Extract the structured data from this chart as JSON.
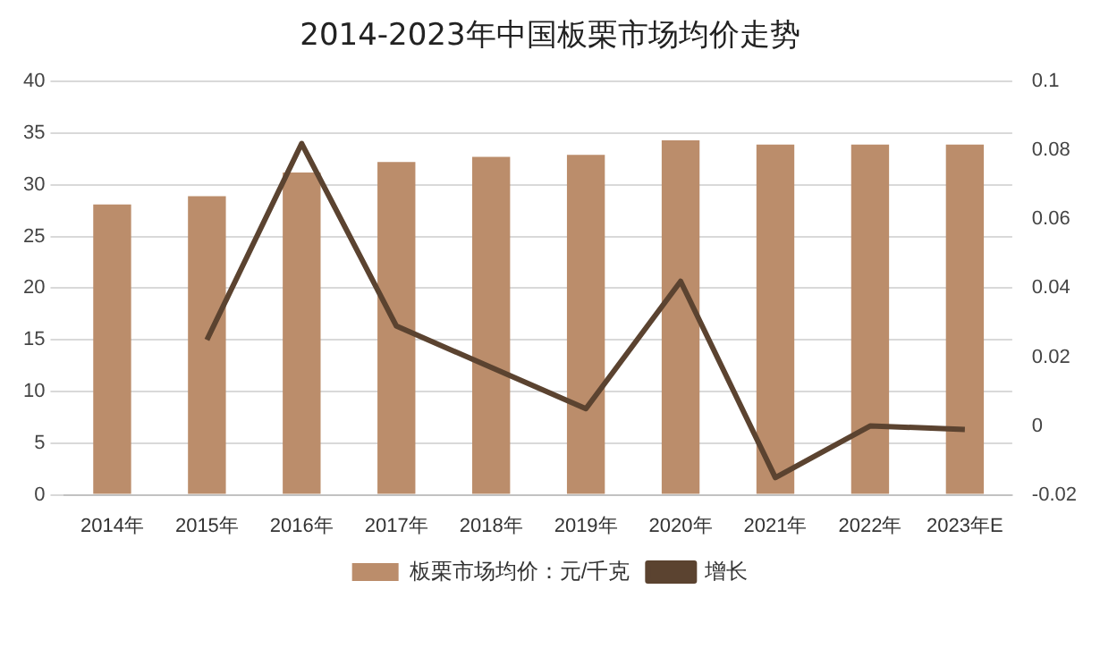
{
  "chart_data": {
    "type": "bar",
    "title": "2014-2023年中国板栗市场均价走势",
    "categories": [
      "2014年",
      "2015年",
      "2016年",
      "2017年",
      "2018年",
      "2019年",
      "2020年",
      "2021年",
      "2022年",
      "2023年E"
    ],
    "series": [
      {
        "name": "板栗市场均价：元/千克",
        "color": "#bb8d6b",
        "values": [
          28.1,
          28.9,
          31.2,
          32.2,
          32.7,
          32.9,
          34.3,
          33.9,
          33.9,
          33.9
        ]
      },
      {
        "name": "增长",
        "type": "line",
        "axis": "y2",
        "color": "#5b4330",
        "values": [
          null,
          0.025,
          0.082,
          0.029,
          0.017,
          0.005,
          0.042,
          -0.015,
          0.0,
          -0.001
        ]
      }
    ],
    "ylim": [
      0,
      40
    ],
    "yticks": [
      0,
      5,
      10,
      15,
      20,
      25,
      30,
      35,
      40
    ],
    "y2lim": [
      -0.02,
      0.1
    ],
    "y2ticks": [
      -0.02,
      0,
      0.02,
      0.04,
      0.06,
      0.08,
      0.1
    ],
    "grid": "y",
    "legend": "bottom",
    "marker": "none"
  }
}
